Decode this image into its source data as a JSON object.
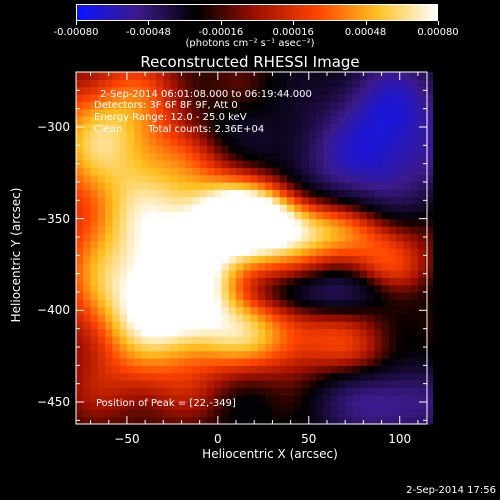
{
  "chart_data": {
    "type": "heatmap",
    "title": "Reconstructed RHESSI Image",
    "xlabel": "Heliocentric X (arcsec)",
    "ylabel": "Heliocentric Y (arcsec)",
    "xlim": [
      -78,
      115
    ],
    "ylim": [
      -462,
      -270
    ],
    "x_ticks": [
      -50,
      0,
      50,
      100
    ],
    "y_ticks": [
      -300,
      -350,
      -400,
      -450
    ],
    "colorbar": {
      "ticks": [
        "-0.00080",
        "-0.00048",
        "-0.00016",
        "0.00016",
        "0.00048",
        "0.00080"
      ],
      "unit_label": "(photons cm⁻² s⁻¹ asec⁻²)",
      "range": [
        -0.0008,
        0.0008
      ],
      "colors": [
        "#0a14ff",
        "#3c1a8a",
        "#000000",
        "#a01000",
        "#ff4400",
        "#ffc020",
        "#ffffff"
      ]
    },
    "annotations": {
      "time_range": "2-Sep-2014 06:01:08.000 to 06:19:44.000",
      "detectors": "Detectors: 3F 6F 8F 9F, Att 0",
      "energy": "Energy Range: 12.0 - 25.0 keV",
      "method": "Clean",
      "counts": "Total counts: 2.36E+04",
      "peak": "Position of Peak = [22,-349]"
    },
    "peak_position": [
      22,
      -349
    ]
  },
  "timestamp": "2-Sep-2014 17:56"
}
